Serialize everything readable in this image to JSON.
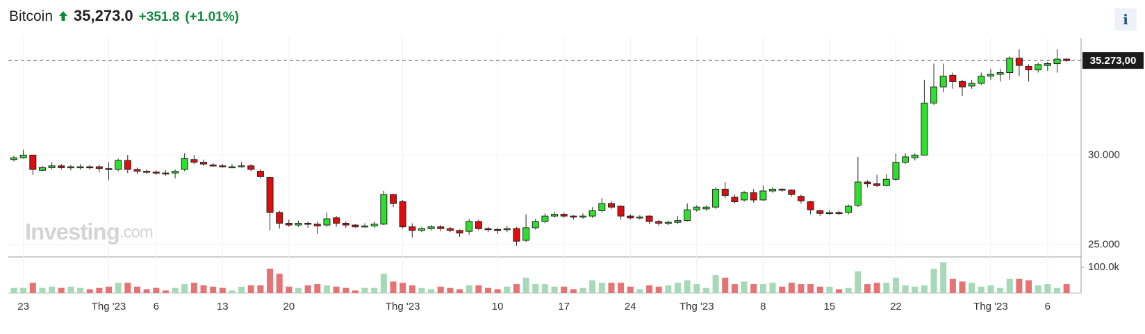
{
  "chart_data": {
    "type": "candlestick",
    "title": "Bitcoin",
    "price": "35,273.0",
    "change": "+351.8",
    "change_pct": "(+1.01%)",
    "info_button": "i",
    "watermark": {
      "brand": "Investing",
      "suffix": ".com"
    },
    "last_price": {
      "value": 35273,
      "label": "35.273,00"
    },
    "up_color": "#2ee02e",
    "down_color": "#e00d0d",
    "volume_up_color": "#a6d9b8",
    "volume_down_color": "#e57373",
    "grid": true,
    "ylim": [
      24400,
      36400
    ],
    "yticks": [
      {
        "value": 25000,
        "label": "25.000"
      },
      {
        "value": 30000,
        "label": "30.000"
      }
    ],
    "volume_ylim": [
      0,
      130000
    ],
    "volume_yticks": [
      {
        "value": 100000,
        "label": "100.0k"
      }
    ],
    "xticks": [
      {
        "value": 1,
        "label": "23"
      },
      {
        "value": 10,
        "label": "Thg '23"
      },
      {
        "value": 15,
        "label": "6"
      },
      {
        "value": 22,
        "label": "13"
      },
      {
        "value": 29,
        "label": "20"
      },
      {
        "value": 41,
        "label": "Thg '23"
      },
      {
        "value": 51,
        "label": "10"
      },
      {
        "value": 58,
        "label": "17"
      },
      {
        "value": 65,
        "label": "24"
      },
      {
        "value": 72,
        "label": "Thg '23"
      },
      {
        "value": 79,
        "label": "8"
      },
      {
        "value": 86,
        "label": "15"
      },
      {
        "value": 93,
        "label": "22"
      },
      {
        "value": 103,
        "label": "Thg '23"
      },
      {
        "value": 109,
        "label": "6"
      }
    ],
    "open": [
      29750,
      29850,
      30000,
      29150,
      29300,
      29400,
      29300,
      29300,
      29350,
      29350,
      29250,
      29200,
      29700,
      29200,
      29100,
      29050,
      29000,
      29000,
      29200,
      29750,
      29600,
      29450,
      29400,
      29350,
      29350,
      29400,
      29100,
      28750,
      26800,
      26200,
      26100,
      26200,
      26150,
      26100,
      26500,
      26200,
      26100,
      26050,
      26050,
      26150,
      27800,
      27400,
      26000,
      25800,
      25900,
      26000,
      25900,
      25800,
      25750,
      26300,
      25900,
      25850,
      25850,
      25900,
      25250,
      25950,
      26300,
      26600,
      26700,
      26600,
      26550,
      26600,
      26900,
      27300,
      27150,
      26600,
      26500,
      26600,
      26300,
      26250,
      26250,
      26350,
      26950,
      27000,
      27100,
      28100,
      27650,
      27500,
      27900,
      27500,
      28000,
      28100,
      28050,
      27700,
      27400,
      26900,
      26750,
      26800,
      26800,
      27200,
      28500,
      28400,
      28300,
      28650,
      29600,
      29850,
      30000,
      32900,
      33800,
      34450,
      34100,
      33850,
      34000,
      34400,
      34500,
      34600,
      35400,
      34950,
      34750,
      35000,
      35100,
      35350
    ],
    "high": [
      29950,
      30300,
      30000,
      29400,
      29600,
      29500,
      29450,
      29500,
      29450,
      29450,
      29600,
      29800,
      30000,
      29300,
      29200,
      29150,
      29150,
      29200,
      30100,
      30000,
      29750,
      29550,
      29500,
      29500,
      29600,
      29500,
      29200,
      28800,
      26900,
      26400,
      26350,
      26300,
      26300,
      26800,
      26600,
      26300,
      26150,
      26200,
      26300,
      28000,
      27850,
      27500,
      26200,
      26000,
      26100,
      26100,
      26000,
      25850,
      26450,
      26400,
      26000,
      25950,
      26050,
      26000,
      26700,
      26450,
      26750,
      26850,
      26800,
      26650,
      26750,
      27100,
      27600,
      27450,
      27200,
      26700,
      26650,
      26650,
      26400,
      26350,
      26600,
      27300,
      27200,
      27200,
      28200,
      28500,
      27800,
      28000,
      28100,
      28300,
      28200,
      28150,
      28100,
      27800,
      27450,
      26950,
      26950,
      26900,
      27250,
      29900,
      28600,
      28900,
      28950,
      30100,
      30100,
      30100,
      34200,
      35100,
      35100,
      34600,
      34200,
      34200,
      34600,
      34800,
      34800,
      35500,
      35900,
      35050,
      35150,
      35200,
      35900,
      35400
    ],
    "low": [
      29650,
      29800,
      28900,
      29100,
      29200,
      29200,
      29150,
      29200,
      29200,
      29050,
      28600,
      29100,
      29000,
      28950,
      28950,
      28900,
      28850,
      28700,
      29100,
      29500,
      29400,
      29350,
      29300,
      29300,
      29300,
      29100,
      28700,
      25800,
      25900,
      26000,
      26000,
      25950,
      25600,
      26000,
      26000,
      25950,
      25950,
      25950,
      25950,
      26100,
      27100,
      25900,
      25400,
      25700,
      25800,
      25750,
      25700,
      25450,
      25550,
      25800,
      25700,
      25600,
      25700,
      24950,
      25150,
      25850,
      26200,
      26500,
      26500,
      26400,
      26450,
      26500,
      26800,
      27000,
      26400,
      26400,
      26400,
      26150,
      26050,
      26100,
      26150,
      26300,
      26850,
      26900,
      27000,
      27600,
      27300,
      27400,
      27350,
      27450,
      27900,
      27950,
      27700,
      27300,
      26700,
      26600,
      26650,
      26650,
      26700,
      27100,
      28200,
      28200,
      28250,
      28550,
      29500,
      29700,
      30000,
      32800,
      33500,
      33700,
      33300,
      33700,
      33900,
      34200,
      34100,
      34200,
      34400,
      34100,
      34600,
      34700,
      34600,
      35200
    ],
    "close": [
      29850,
      30000,
      29200,
      29300,
      29400,
      29300,
      29350,
      29350,
      29300,
      29250,
      29200,
      29700,
      29200,
      29100,
      29050,
      29000,
      28950,
      29100,
      29800,
      29600,
      29500,
      29400,
      29350,
      29350,
      29400,
      29200,
      28800,
      26800,
      26200,
      26100,
      26200,
      26150,
      26050,
      26450,
      26200,
      26100,
      26000,
      26050,
      26150,
      27800,
      27300,
      26000,
      25800,
      25900,
      26000,
      25900,
      25800,
      25650,
      26300,
      25900,
      25850,
      25800,
      25900,
      25200,
      25950,
      26300,
      26600,
      26700,
      26600,
      26550,
      26600,
      26900,
      27300,
      27100,
      26600,
      26500,
      26550,
      26300,
      26200,
      26250,
      26350,
      26950,
      27100,
      27100,
      28100,
      27750,
      27400,
      27900,
      27500,
      28000,
      28100,
      28050,
      27800,
      27450,
      26950,
      26750,
      26800,
      26750,
      27150,
      28500,
      28400,
      28300,
      28650,
      29600,
      29900,
      30000,
      32900,
      33800,
      34400,
      34100,
      33800,
      34000,
      34400,
      34500,
      34600,
      35400,
      35000,
      34750,
      35050,
      35100,
      35350,
      35270
    ],
    "volume": [
      20000,
      20000,
      40000,
      20000,
      25000,
      20000,
      25000,
      20000,
      15000,
      20000,
      25000,
      40000,
      40000,
      25000,
      15000,
      20000,
      10000,
      20000,
      35000,
      40000,
      30000,
      25000,
      20000,
      10000,
      25000,
      30000,
      30000,
      95000,
      75000,
      25000,
      20000,
      30000,
      35000,
      30000,
      25000,
      20000,
      10000,
      20000,
      20000,
      75000,
      45000,
      40000,
      30000,
      20000,
      15000,
      25000,
      20000,
      15000,
      30000,
      30000,
      20000,
      15000,
      25000,
      35000,
      60000,
      35000,
      35000,
      25000,
      25000,
      15000,
      20000,
      50000,
      40000,
      40000,
      40000,
      25000,
      15000,
      30000,
      25000,
      30000,
      40000,
      50000,
      35000,
      20000,
      70000,
      60000,
      35000,
      45000,
      35000,
      35000,
      40000,
      25000,
      40000,
      35000,
      35000,
      25000,
      25000,
      15000,
      20000,
      85000,
      35000,
      40000,
      40000,
      60000,
      30000,
      25000,
      30000,
      95000,
      120000,
      55000,
      45000,
      40000,
      25000,
      30000,
      20000,
      55000,
      55000,
      50000,
      30000,
      35000,
      20000,
      35000
    ]
  }
}
